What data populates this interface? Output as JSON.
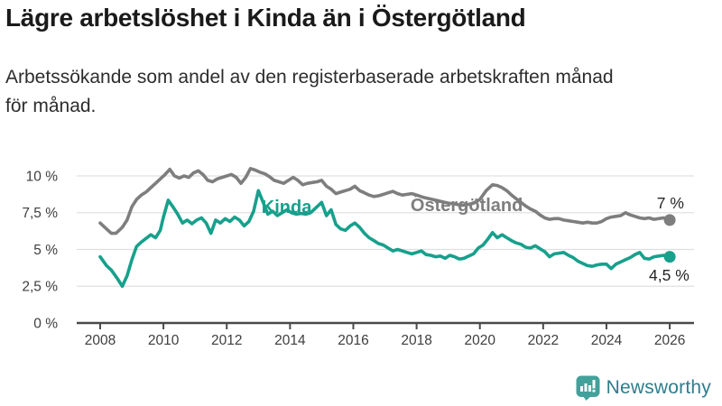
{
  "header": {
    "title": "Lägre arbetslöshet i Kinda än i Östergötland",
    "subtitle_line1": "Arbetssökande som andel av den registerbaserade arbetskraften månad",
    "subtitle_line2": "för månad."
  },
  "footer": {
    "brand": "Newsworthy",
    "brand_color": "#2f7d8c",
    "icon_color": "#42a19a"
  },
  "chart_data": {
    "type": "line",
    "title": "Lägre arbetslöshet i Kinda än i Östergötland",
    "subtitle": "Arbetssökande som andel av den registerbaserade arbetskraften månad för månad.",
    "xlabel": "",
    "ylabel": "",
    "xlim": [
      2007.8,
      2026.8
    ],
    "ylim": [
      0,
      11.2
    ],
    "grid": true,
    "legend_position": "inline-labels",
    "x_ticks": [
      2008,
      2010,
      2012,
      2014,
      2016,
      2018,
      2020,
      2022,
      2024,
      2026
    ],
    "y_ticks": [
      {
        "value": 0,
        "label": "0 %"
      },
      {
        "value": 2.5,
        "label": "2,5 %"
      },
      {
        "value": 5,
        "label": "5 %"
      },
      {
        "value": 7.5,
        "label": "7,5 %"
      },
      {
        "value": 10,
        "label": "10 %"
      }
    ],
    "style": {
      "grid_color": "#e0e0e0",
      "axis_color": "#4a4a4a",
      "tick_color": "#3e3e3e",
      "value_label_color": "#262626"
    },
    "series": [
      {
        "id": "ostergotland",
        "name": "Östergötland",
        "color": "#7e7e7e",
        "inline_label": {
          "year": 2017.81,
          "value": 7.6
        },
        "end_label": {
          "text": "7 %",
          "year": 2026.45,
          "value": 7.79,
          "anchor": "end"
        },
        "points": [
          [
            2008.0,
            6.8
          ],
          [
            2008.2,
            6.4
          ],
          [
            2008.35,
            6.1
          ],
          [
            2008.5,
            6.1
          ],
          [
            2008.7,
            6.5
          ],
          [
            2008.85,
            7.0
          ],
          [
            2009.0,
            7.9
          ],
          [
            2009.15,
            8.4
          ],
          [
            2009.3,
            8.7
          ],
          [
            2009.45,
            8.9
          ],
          [
            2009.6,
            9.2
          ],
          [
            2009.75,
            9.5
          ],
          [
            2009.9,
            9.8
          ],
          [
            2010.05,
            10.1
          ],
          [
            2010.2,
            10.45
          ],
          [
            2010.35,
            10.0
          ],
          [
            2010.5,
            9.85
          ],
          [
            2010.65,
            10.0
          ],
          [
            2010.8,
            9.9
          ],
          [
            2010.95,
            10.2
          ],
          [
            2011.1,
            10.35
          ],
          [
            2011.25,
            10.1
          ],
          [
            2011.4,
            9.7
          ],
          [
            2011.55,
            9.6
          ],
          [
            2011.7,
            9.8
          ],
          [
            2011.85,
            9.9
          ],
          [
            2012.0,
            10.0
          ],
          [
            2012.15,
            10.1
          ],
          [
            2012.3,
            9.9
          ],
          [
            2012.45,
            9.5
          ],
          [
            2012.6,
            9.9
          ],
          [
            2012.75,
            10.5
          ],
          [
            2012.9,
            10.4
          ],
          [
            2013.05,
            10.25
          ],
          [
            2013.2,
            10.15
          ],
          [
            2013.35,
            9.95
          ],
          [
            2013.5,
            9.7
          ],
          [
            2013.65,
            9.6
          ],
          [
            2013.8,
            9.5
          ],
          [
            2013.95,
            9.7
          ],
          [
            2014.1,
            9.9
          ],
          [
            2014.25,
            9.7
          ],
          [
            2014.4,
            9.4
          ],
          [
            2014.55,
            9.5
          ],
          [
            2014.7,
            9.55
          ],
          [
            2014.85,
            9.6
          ],
          [
            2015.0,
            9.7
          ],
          [
            2015.15,
            9.3
          ],
          [
            2015.3,
            9.1
          ],
          [
            2015.45,
            8.8
          ],
          [
            2015.6,
            8.9
          ],
          [
            2015.75,
            9.0
          ],
          [
            2015.9,
            9.1
          ],
          [
            2016.05,
            9.3
          ],
          [
            2016.2,
            9.0
          ],
          [
            2016.35,
            8.85
          ],
          [
            2016.5,
            8.7
          ],
          [
            2016.65,
            8.6
          ],
          [
            2016.8,
            8.65
          ],
          [
            2016.95,
            8.75
          ],
          [
            2017.1,
            8.85
          ],
          [
            2017.25,
            8.95
          ],
          [
            2017.4,
            8.8
          ],
          [
            2017.55,
            8.7
          ],
          [
            2017.7,
            8.75
          ],
          [
            2017.85,
            8.8
          ],
          [
            2018.0,
            8.7
          ],
          [
            2018.2,
            8.55
          ],
          [
            2018.4,
            8.45
          ],
          [
            2018.6,
            8.35
          ],
          [
            2018.8,
            8.25
          ],
          [
            2019.0,
            8.15
          ],
          [
            2019.2,
            8.1
          ],
          [
            2019.4,
            8.0
          ],
          [
            2019.6,
            8.05
          ],
          [
            2019.8,
            8.15
          ],
          [
            2020.0,
            8.4
          ],
          [
            2020.2,
            9.0
          ],
          [
            2020.4,
            9.4
          ],
          [
            2020.55,
            9.35
          ],
          [
            2020.7,
            9.2
          ],
          [
            2020.85,
            9.0
          ],
          [
            2021.0,
            8.7
          ],
          [
            2021.15,
            8.45
          ],
          [
            2021.3,
            8.2
          ],
          [
            2021.45,
            7.95
          ],
          [
            2021.6,
            7.75
          ],
          [
            2021.75,
            7.6
          ],
          [
            2021.9,
            7.35
          ],
          [
            2022.05,
            7.15
          ],
          [
            2022.2,
            7.05
          ],
          [
            2022.35,
            7.1
          ],
          [
            2022.5,
            7.1
          ],
          [
            2022.65,
            7.0
          ],
          [
            2022.8,
            6.95
          ],
          [
            2022.95,
            6.9
          ],
          [
            2023.1,
            6.85
          ],
          [
            2023.25,
            6.8
          ],
          [
            2023.4,
            6.85
          ],
          [
            2023.55,
            6.8
          ],
          [
            2023.7,
            6.8
          ],
          [
            2023.85,
            6.9
          ],
          [
            2024.0,
            7.1
          ],
          [
            2024.15,
            7.2
          ],
          [
            2024.3,
            7.25
          ],
          [
            2024.45,
            7.3
          ],
          [
            2024.6,
            7.5
          ],
          [
            2024.75,
            7.35
          ],
          [
            2024.9,
            7.25
          ],
          [
            2025.05,
            7.15
          ],
          [
            2025.2,
            7.1
          ],
          [
            2025.35,
            7.15
          ],
          [
            2025.5,
            7.05
          ],
          [
            2025.65,
            7.1
          ],
          [
            2025.8,
            7.15
          ],
          [
            2026.0,
            7.0
          ]
        ]
      },
      {
        "id": "kinda",
        "name": "Kinda",
        "color": "#17a08c",
        "inline_label": {
          "year": 2013.1,
          "value": 7.48
        },
        "end_label": {
          "text": "4,5 %",
          "year": 2026.62,
          "value": 2.88,
          "anchor": "end"
        },
        "points": [
          [
            2008.0,
            4.5
          ],
          [
            2008.2,
            3.9
          ],
          [
            2008.35,
            3.6
          ],
          [
            2008.55,
            3.0
          ],
          [
            2008.7,
            2.5
          ],
          [
            2008.85,
            3.2
          ],
          [
            2009.0,
            4.3
          ],
          [
            2009.15,
            5.2
          ],
          [
            2009.3,
            5.5
          ],
          [
            2009.45,
            5.75
          ],
          [
            2009.6,
            6.0
          ],
          [
            2009.75,
            5.8
          ],
          [
            2009.9,
            6.3
          ],
          [
            2010.0,
            7.2
          ],
          [
            2010.15,
            8.35
          ],
          [
            2010.3,
            7.9
          ],
          [
            2010.45,
            7.4
          ],
          [
            2010.6,
            6.8
          ],
          [
            2010.75,
            7.0
          ],
          [
            2010.9,
            6.75
          ],
          [
            2011.05,
            7.0
          ],
          [
            2011.2,
            7.15
          ],
          [
            2011.35,
            6.8
          ],
          [
            2011.5,
            6.1
          ],
          [
            2011.65,
            7.0
          ],
          [
            2011.8,
            6.8
          ],
          [
            2011.95,
            7.1
          ],
          [
            2012.1,
            6.9
          ],
          [
            2012.25,
            7.2
          ],
          [
            2012.4,
            7.0
          ],
          [
            2012.55,
            6.6
          ],
          [
            2012.7,
            6.9
          ],
          [
            2012.85,
            7.6
          ],
          [
            2013.0,
            9.0
          ],
          [
            2013.15,
            8.2
          ],
          [
            2013.3,
            7.4
          ],
          [
            2013.45,
            7.6
          ],
          [
            2013.6,
            7.3
          ],
          [
            2013.75,
            7.5
          ],
          [
            2013.9,
            7.7
          ],
          [
            2014.05,
            7.5
          ],
          [
            2014.2,
            7.4
          ],
          [
            2014.35,
            7.45
          ],
          [
            2014.5,
            7.4
          ],
          [
            2014.65,
            7.5
          ],
          [
            2014.8,
            7.8
          ],
          [
            2015.0,
            8.2
          ],
          [
            2015.15,
            7.3
          ],
          [
            2015.3,
            7.7
          ],
          [
            2015.45,
            6.7
          ],
          [
            2015.6,
            6.4
          ],
          [
            2015.75,
            6.3
          ],
          [
            2015.9,
            6.6
          ],
          [
            2016.05,
            6.8
          ],
          [
            2016.2,
            6.5
          ],
          [
            2016.35,
            6.1
          ],
          [
            2016.5,
            5.8
          ],
          [
            2016.65,
            5.6
          ],
          [
            2016.8,
            5.4
          ],
          [
            2016.95,
            5.3
          ],
          [
            2017.1,
            5.1
          ],
          [
            2017.25,
            4.9
          ],
          [
            2017.4,
            5.0
          ],
          [
            2017.55,
            4.9
          ],
          [
            2017.7,
            4.8
          ],
          [
            2017.85,
            4.7
          ],
          [
            2018.0,
            4.8
          ],
          [
            2018.15,
            4.9
          ],
          [
            2018.3,
            4.65
          ],
          [
            2018.45,
            4.6
          ],
          [
            2018.6,
            4.5
          ],
          [
            2018.75,
            4.55
          ],
          [
            2018.9,
            4.4
          ],
          [
            2019.05,
            4.6
          ],
          [
            2019.2,
            4.5
          ],
          [
            2019.35,
            4.35
          ],
          [
            2019.5,
            4.4
          ],
          [
            2019.65,
            4.55
          ],
          [
            2019.8,
            4.7
          ],
          [
            2019.95,
            5.1
          ],
          [
            2020.1,
            5.3
          ],
          [
            2020.25,
            5.7
          ],
          [
            2020.4,
            6.15
          ],
          [
            2020.55,
            5.8
          ],
          [
            2020.7,
            6.0
          ],
          [
            2020.85,
            5.8
          ],
          [
            2021.0,
            5.6
          ],
          [
            2021.15,
            5.45
          ],
          [
            2021.3,
            5.35
          ],
          [
            2021.45,
            5.15
          ],
          [
            2021.6,
            5.1
          ],
          [
            2021.75,
            5.25
          ],
          [
            2021.9,
            5.05
          ],
          [
            2022.05,
            4.85
          ],
          [
            2022.2,
            4.5
          ],
          [
            2022.35,
            4.7
          ],
          [
            2022.5,
            4.75
          ],
          [
            2022.65,
            4.8
          ],
          [
            2022.8,
            4.6
          ],
          [
            2022.95,
            4.45
          ],
          [
            2023.1,
            4.2
          ],
          [
            2023.25,
            4.05
          ],
          [
            2023.4,
            3.9
          ],
          [
            2023.55,
            3.85
          ],
          [
            2023.7,
            3.95
          ],
          [
            2023.85,
            4.0
          ],
          [
            2024.0,
            4.0
          ],
          [
            2024.15,
            3.7
          ],
          [
            2024.3,
            4.0
          ],
          [
            2024.45,
            4.15
          ],
          [
            2024.6,
            4.3
          ],
          [
            2024.75,
            4.45
          ],
          [
            2024.9,
            4.65
          ],
          [
            2025.05,
            4.8
          ],
          [
            2025.2,
            4.4
          ],
          [
            2025.35,
            4.35
          ],
          [
            2025.5,
            4.5
          ],
          [
            2025.65,
            4.55
          ],
          [
            2025.8,
            4.6
          ],
          [
            2026.0,
            4.5
          ]
        ]
      }
    ]
  }
}
